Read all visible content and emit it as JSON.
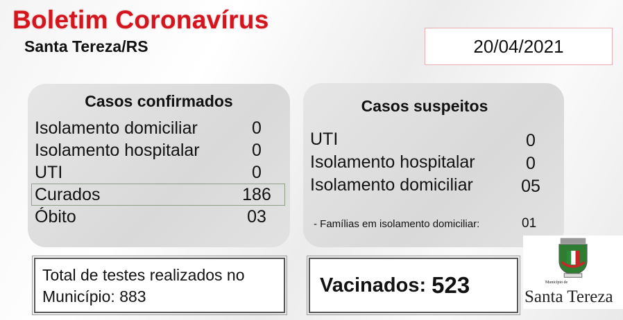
{
  "header": {
    "title": "Boletim Coronavírus",
    "subtitle": "Santa Tereza/RS",
    "date": "20/04/2021"
  },
  "confirmed": {
    "heading": "Casos confirmados",
    "rows": [
      {
        "label": "Isolamento domiciliar",
        "value": "0"
      },
      {
        "label": "Isolamento hospitalar",
        "value": "0"
      },
      {
        "label": "UTI",
        "value": "0"
      },
      {
        "label": "Curados",
        "value": "186"
      },
      {
        "label": "Óbito",
        "value": "03"
      }
    ]
  },
  "suspected": {
    "heading": "Casos suspeitos",
    "rows": [
      {
        "label": "UTI",
        "value": "0"
      },
      {
        "label": "Isolamento hospitalar",
        "value": "0"
      },
      {
        "label": "Isolamento domiciliar",
        "value": "05"
      }
    ],
    "families_label": "- Famílias em isolamento domiciliar:",
    "families_value": "01"
  },
  "tests": {
    "line1": "Total de testes realizados no",
    "line2_label": "Município:",
    "line2_value": "883"
  },
  "vaccinated": {
    "label": "Vacinados:",
    "value": "523"
  },
  "logo": {
    "small": "Município de",
    "name": "Santa Tereza",
    "seal": "SANTA TEREZA"
  },
  "colors": {
    "title": "#d3161e",
    "panel": "#dcdcdc"
  }
}
